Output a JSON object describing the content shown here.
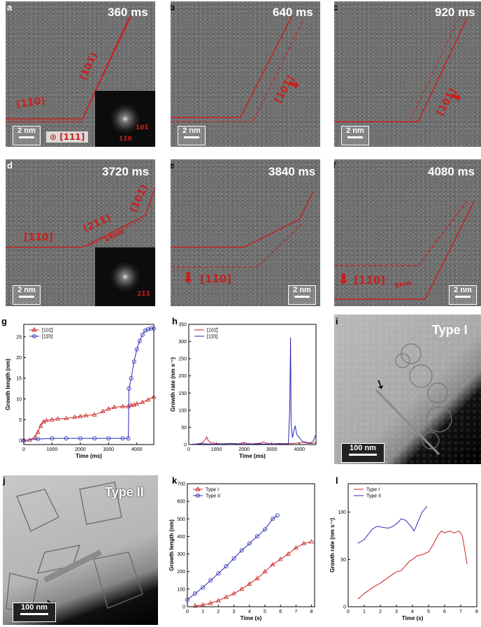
{
  "panels": {
    "a": {
      "label": "a",
      "time": "360 ms",
      "dir1": "(11̄0)",
      "dir2": "(101̄)",
      "zone": "⊙ [111]",
      "scale": "2 nm",
      "fft1": "101̄",
      "fft2": "11̄0"
    },
    "b": {
      "label": "b",
      "time": "640 ms",
      "dir": "[101̄]",
      "scale": "2 nm"
    },
    "c": {
      "label": "c",
      "time": "920 ms",
      "dir": "[101̄]",
      "scale": "2 nm"
    },
    "d": {
      "label": "d",
      "time": "3720 ms",
      "dir1": "[11̄0]",
      "dir2": "(21̄1̄)",
      "dir3": "(101̄)",
      "len": "14nm",
      "scale": "2 nm",
      "fft1": "21̄1̄"
    },
    "e": {
      "label": "e",
      "time": "3840 ms",
      "dir": "[11̄0]",
      "scale": "2 nm"
    },
    "f": {
      "label": "f",
      "time": "4080 ms",
      "dir": "[11̄0]",
      "len": "9nm",
      "scale": "2 nm"
    },
    "g": {
      "label": "g"
    },
    "h": {
      "label": "h"
    },
    "i": {
      "label": "i",
      "type": "Type I",
      "scale": "100 nm"
    },
    "j": {
      "label": "j",
      "type": "Type II",
      "scale": "100 nm"
    },
    "k": {
      "label": "k"
    },
    "l": {
      "label": "l"
    }
  },
  "colors": {
    "red": "#c8201e",
    "blue": "#2a2ab8"
  },
  "chart_data": [
    {
      "id": "g",
      "type": "scatter",
      "xlabel": "Time (ms)",
      "ylabel": "Growth length (nm)",
      "xlim": [
        0,
        4600
      ],
      "ylim": [
        -1,
        28
      ],
      "xticks": [
        0,
        1000,
        2000,
        3000,
        4000
      ],
      "yticks": [
        0,
        5,
        10,
        15,
        20,
        25
      ],
      "legend": "top-left",
      "series": [
        {
          "name": "[101̄]",
          "color": "#c8201e",
          "marker": "triangle",
          "x": [
            0,
            200,
            400,
            500,
            600,
            700,
            800,
            1000,
            1200,
            1500,
            1800,
            2000,
            2200,
            2500,
            2800,
            3000,
            3200,
            3500,
            3700,
            3800,
            3900,
            4000,
            4200,
            4400,
            4600
          ],
          "y": [
            0,
            0.1,
            0.8,
            2.0,
            3.5,
            4.5,
            4.8,
            5.0,
            5.2,
            5.3,
            5.6,
            5.8,
            6.0,
            6.2,
            7.0,
            7.6,
            8.0,
            8.2,
            8.2,
            8.5,
            8.6,
            8.8,
            9.2,
            9.8,
            10.5
          ]
        },
        {
          "name": "[11̄0]",
          "color": "#2a2ab8",
          "marker": "circle",
          "x": [
            0,
            500,
            1000,
            1500,
            2000,
            2500,
            3000,
            3500,
            3700,
            3720,
            3800,
            3900,
            4000,
            4100,
            4200,
            4300,
            4400,
            4500,
            4600
          ],
          "y": [
            0,
            0.3,
            0.5,
            0.5,
            0.5,
            0.5,
            0.5,
            0.5,
            0.5,
            12.5,
            15,
            19,
            22,
            24,
            25.5,
            26.5,
            26.8,
            27,
            27
          ]
        }
      ]
    },
    {
      "id": "h",
      "type": "line",
      "xlabel": "Time (ms)",
      "ylabel": "Growth rate (nm s⁻¹)",
      "xlim": [
        0,
        4600
      ],
      "ylim": [
        0,
        350
      ],
      "xticks": [
        0,
        1000,
        2000,
        3000,
        4000
      ],
      "yticks": [
        0,
        50,
        100,
        150,
        200,
        250,
        300,
        350
      ],
      "legend": "top-left",
      "series": [
        {
          "name": "[101̄]",
          "color": "#c8201e",
          "x": [
            0,
            300,
            500,
            600,
            650,
            700,
            800,
            1000,
            1200,
            1500,
            1800,
            2000,
            2100,
            2300,
            2600,
            2700,
            2800,
            3000,
            3300,
            3600,
            3700,
            3900,
            4100,
            4400,
            4600
          ],
          "y": [
            0,
            2,
            5,
            15,
            22,
            12,
            5,
            3,
            2,
            3,
            2,
            6,
            3,
            2,
            4,
            8,
            4,
            2,
            3,
            2,
            3,
            4,
            6,
            3,
            5
          ]
        },
        {
          "name": "[11̄0]",
          "color": "#2a2ab8",
          "x": [
            0,
            500,
            1000,
            1500,
            2000,
            2500,
            3000,
            3500,
            3600,
            3650,
            3680,
            3700,
            3750,
            3800,
            3850,
            3900,
            4000,
            4100,
            4200,
            4300,
            4400,
            4500,
            4600
          ],
          "y": [
            0,
            2,
            1,
            3,
            1,
            2,
            1,
            2,
            3,
            100,
            312,
            60,
            20,
            40,
            55,
            30,
            20,
            10,
            8,
            5,
            5,
            10,
            30
          ]
        }
      ]
    },
    {
      "id": "k",
      "type": "scatter",
      "xlabel": "Time (s)",
      "ylabel": "Growth length (nm)",
      "xlim": [
        0,
        8.2
      ],
      "ylim": [
        0,
        700
      ],
      "xticks": [
        0,
        1,
        2,
        3,
        4,
        5,
        6,
        7,
        8
      ],
      "yticks": [
        0,
        100,
        200,
        300,
        400,
        500,
        600,
        700
      ],
      "legend": "top-left",
      "series": [
        {
          "name": "Type I",
          "color": "#c8201e",
          "marker": "triangle",
          "x": [
            0.5,
            1,
            1.5,
            2,
            2.5,
            3,
            3.5,
            4,
            4.5,
            5,
            5.5,
            6,
            6.5,
            7,
            7.5,
            8
          ],
          "y": [
            5,
            10,
            20,
            35,
            55,
            75,
            100,
            130,
            160,
            200,
            240,
            270,
            300,
            335,
            360,
            370
          ]
        },
        {
          "name": "Type II",
          "color": "#2a2ab8",
          "marker": "circle",
          "x": [
            0,
            0.5,
            1,
            1.5,
            2,
            2.5,
            3,
            3.5,
            4,
            4.5,
            5,
            5.5,
            5.8
          ],
          "y": [
            40,
            75,
            110,
            150,
            190,
            230,
            275,
            320,
            360,
            400,
            440,
            500,
            520
          ]
        }
      ]
    },
    {
      "id": "l",
      "type": "line",
      "xlabel": "Time (s)",
      "ylabel": "Growth rate (nm s⁻¹)",
      "xlim": [
        0,
        8
      ],
      "ylim": [
        0,
        130
      ],
      "xticks": [
        0,
        1,
        2,
        3,
        4,
        5,
        6,
        7,
        8
      ],
      "yticks": [
        0,
        50,
        100
      ],
      "legend": "top-left",
      "series": [
        {
          "name": "Type I",
          "color": "#c8201e",
          "x": [
            0.6,
            1,
            1.5,
            2,
            2.5,
            3,
            3.3,
            3.5,
            3.8,
            4,
            4.3,
            4.6,
            5,
            5.3,
            5.6,
            5.8,
            6,
            6.3,
            6.6,
            6.9,
            7.1,
            7.4
          ],
          "y": [
            8,
            14,
            20,
            25,
            31,
            37,
            38,
            42,
            48,
            50,
            54,
            55,
            58,
            66,
            76,
            80,
            78,
            80,
            78,
            80,
            75,
            45
          ]
        },
        {
          "name": "Type II",
          "color": "#2a2ab8",
          "x": [
            0.6,
            1,
            1.5,
            1.8,
            2.1,
            2.5,
            2.8,
            3.1,
            3.3,
            3.6,
            3.9,
            4.1,
            4.3,
            4.6,
            4.9
          ],
          "y": [
            67,
            71,
            82,
            85,
            84,
            83,
            85,
            89,
            93,
            91,
            85,
            80,
            88,
            100,
            106
          ]
        }
      ]
    }
  ]
}
